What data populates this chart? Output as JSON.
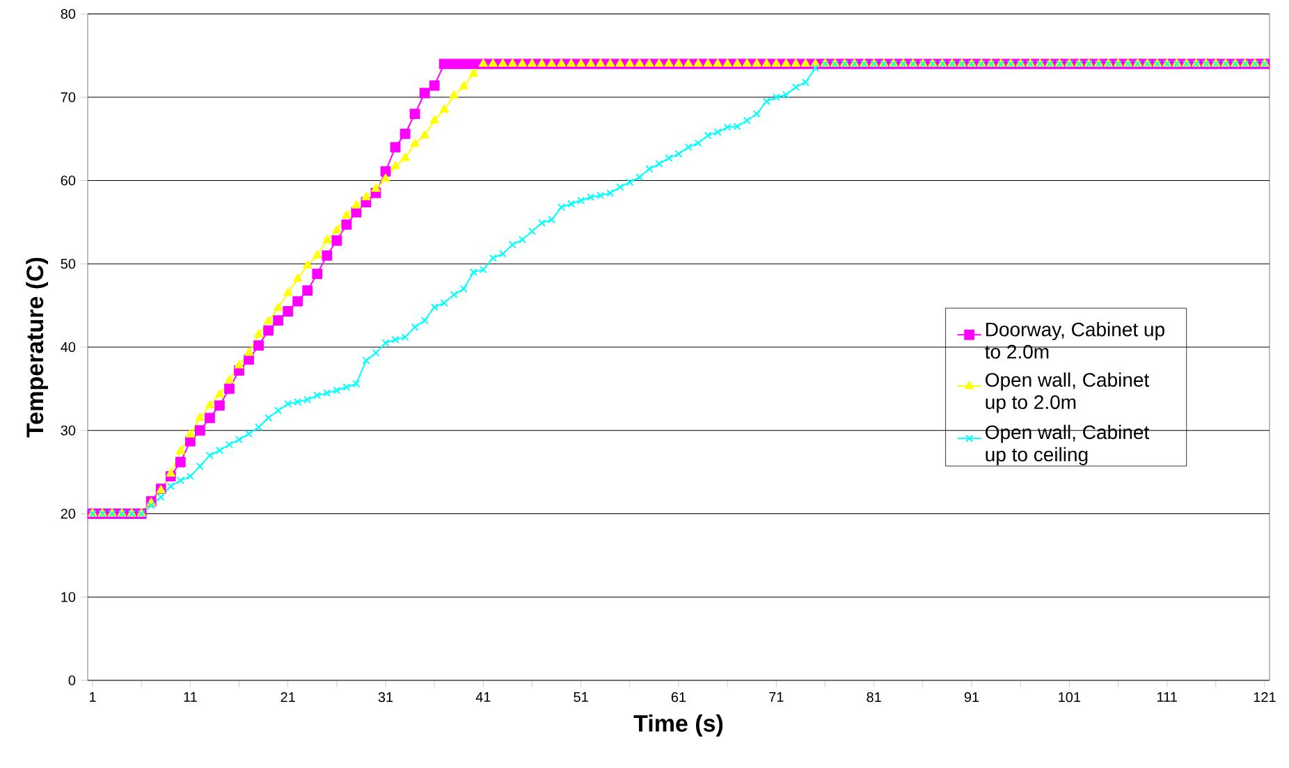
{
  "chart_data": {
    "type": "line",
    "xlabel": "Time (s)",
    "ylabel": "Temperature (C)",
    "x": [
      1,
      2,
      3,
      4,
      5,
      6,
      7,
      8,
      9,
      10,
      11,
      12,
      13,
      14,
      15,
      16,
      17,
      18,
      19,
      20,
      21,
      22,
      23,
      24,
      25,
      26,
      27,
      28,
      29,
      30,
      31,
      32,
      33,
      34,
      35,
      36,
      37,
      38,
      39,
      40,
      41,
      42,
      43,
      44,
      45,
      46,
      47,
      48,
      49,
      50,
      51,
      52,
      53,
      54,
      55,
      56,
      57,
      58,
      59,
      60,
      61,
      62,
      63,
      64,
      65,
      66,
      67,
      68,
      69,
      70,
      71,
      72,
      73,
      74,
      75,
      76,
      77,
      78,
      79,
      80,
      81,
      82,
      83,
      84,
      85,
      86,
      87,
      88,
      89,
      90,
      91,
      92,
      93,
      94,
      95,
      96,
      97,
      98,
      99,
      100,
      101,
      102,
      103,
      104,
      105,
      106,
      107,
      108,
      109,
      110,
      111,
      112,
      113,
      114,
      115,
      116,
      117,
      118,
      119,
      120,
      121
    ],
    "series": [
      {
        "name": "Doorway, Cabinet up to 2.0m",
        "color": "#ff00ff",
        "marker": "square",
        "values": [
          20,
          20,
          20,
          20,
          20,
          20,
          21.5,
          23,
          24.5,
          26.2,
          28.7,
          30,
          31.5,
          33,
          35,
          37.2,
          38.5,
          40.2,
          42,
          43.2,
          44.3,
          45.5,
          46.8,
          48.8,
          51,
          52.8,
          54.7,
          56.2,
          57.4,
          58.5,
          61.1,
          64,
          65.6,
          68,
          70.5,
          71.4,
          74,
          74,
          74,
          74,
          74,
          74,
          74,
          74,
          74,
          74,
          74,
          74,
          74,
          74,
          74,
          74,
          74,
          74,
          74,
          74,
          74,
          74,
          74,
          74,
          74,
          74,
          74,
          74,
          74,
          74,
          74,
          74,
          74,
          74,
          74,
          74,
          74,
          74,
          74,
          74,
          74,
          74,
          74,
          74,
          74,
          74,
          74,
          74,
          74,
          74,
          74,
          74,
          74,
          74,
          74,
          74,
          74,
          74,
          74,
          74,
          74,
          74,
          74,
          74,
          74,
          74,
          74,
          74,
          74,
          74,
          74,
          74,
          74,
          74,
          74,
          74,
          74,
          74,
          74,
          74,
          74,
          74,
          74,
          74,
          74
        ]
      },
      {
        "name": "Open wall, Cabinet up to 2.0m",
        "color": "#ffff00",
        "marker": "triangle",
        "values": [
          20,
          20,
          20,
          20,
          20,
          20,
          21.3,
          22.8,
          24.8,
          27.5,
          29.5,
          31.5,
          33,
          34.3,
          36,
          37.8,
          39.3,
          41.5,
          43.1,
          44.7,
          46.5,
          48.2,
          49.8,
          51,
          52.8,
          54,
          55.8,
          57,
          58,
          59,
          60.2,
          61.7,
          62.7,
          64.4,
          65.4,
          67.2,
          68.5,
          70.2,
          71.3,
          72.8,
          74,
          74,
          74,
          74,
          74,
          74,
          74,
          74,
          74,
          74,
          74,
          74,
          74,
          74,
          74,
          74,
          74,
          74,
          74,
          74,
          74,
          74,
          74,
          74,
          74,
          74,
          74,
          74,
          74,
          74,
          74,
          74,
          74,
          74,
          74,
          74,
          74,
          74,
          74,
          74,
          74,
          74,
          74,
          74,
          74,
          74,
          74,
          74,
          74,
          74,
          74,
          74,
          74,
          74,
          74,
          74,
          74,
          74,
          74,
          74,
          74,
          74,
          74,
          74,
          74,
          74,
          74,
          74,
          74,
          74,
          74,
          74,
          74,
          74,
          74,
          74,
          74,
          74,
          74,
          74,
          74
        ]
      },
      {
        "name": "Open wall, Cabinet up to ceiling",
        "color": "#00ffff",
        "marker": "cross",
        "values": [
          20,
          20,
          20,
          20,
          20,
          20,
          21,
          22,
          23.3,
          24,
          24.5,
          25.7,
          27,
          27.6,
          28.3,
          28.9,
          29.6,
          30.4,
          31.5,
          32.4,
          33.2,
          33.4,
          33.7,
          34.2,
          34.5,
          34.8,
          35.2,
          35.6,
          38.4,
          39.3,
          40.5,
          40.9,
          41.2,
          42.4,
          43.2,
          44.8,
          45.3,
          46.3,
          47,
          49,
          49.3,
          50.7,
          51.2,
          52.3,
          52.9,
          53.9,
          54.9,
          55.3,
          56.8,
          57.2,
          57.6,
          58,
          58.2,
          58.5,
          59.2,
          59.8,
          60.4,
          61.4,
          62,
          62.7,
          63.2,
          64,
          64.5,
          65.4,
          65.8,
          66.4,
          66.5,
          67.2,
          68,
          69.5,
          70,
          70.3,
          71.2,
          71.8,
          73.5,
          74,
          74,
          74,
          74,
          74,
          74,
          74,
          74,
          74,
          74,
          74,
          74,
          74,
          74,
          74,
          74,
          74,
          74,
          74,
          74,
          74,
          74,
          74,
          74,
          74,
          74,
          74,
          74,
          74,
          74,
          74,
          74,
          74,
          74,
          74,
          74,
          74,
          74,
          74,
          74,
          74,
          74,
          74,
          74,
          74,
          74
        ]
      }
    ],
    "xlim": [
      0.5,
      121.5
    ],
    "xticks": [
      1,
      {
        "value": 6,
        "label": null
      },
      11,
      {
        "value": 16,
        "label": null
      },
      21,
      {
        "value": 26,
        "label": null
      },
      31,
      {
        "value": 36,
        "label": null
      },
      41,
      {
        "value": 46,
        "label": null
      },
      51,
      {
        "value": 56,
        "label": null
      },
      61,
      {
        "value": 66,
        "label": null
      },
      71,
      {
        "value": 76,
        "label": null
      },
      81,
      {
        "value": 86,
        "label": null
      },
      91,
      {
        "value": 96,
        "label": null
      },
      101,
      {
        "value": 106,
        "label": null
      },
      111,
      {
        "value": 116,
        "label": null
      },
      121
    ],
    "ylim": [
      0,
      80
    ],
    "yticks": [
      0,
      10,
      20,
      30,
      40,
      50,
      60,
      70,
      80
    ],
    "grid": "y",
    "legend": "right",
    "line_style": "solid"
  }
}
